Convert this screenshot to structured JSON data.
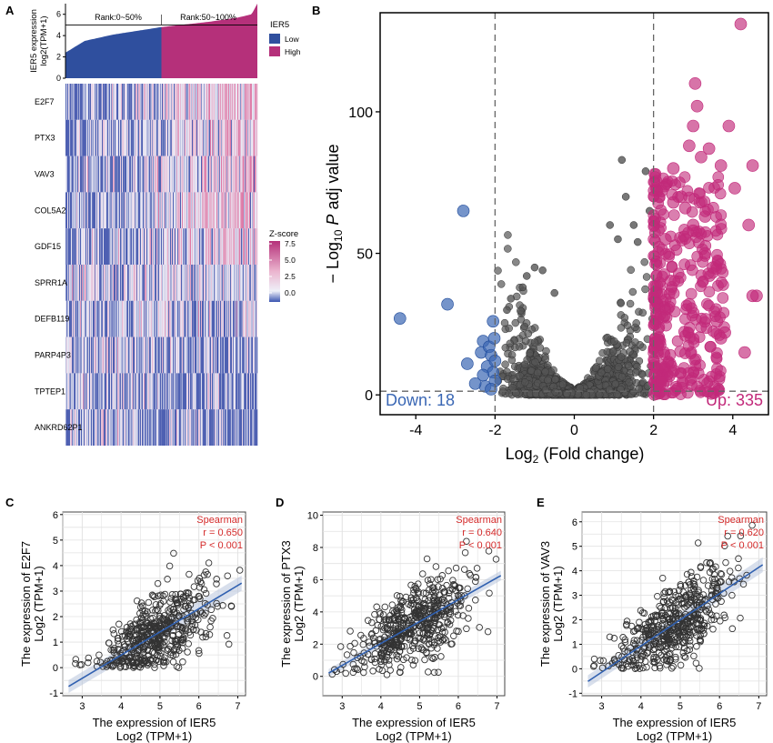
{
  "panel_letters": {
    "a": "A",
    "b": "B",
    "c": "C",
    "d": "D",
    "e": "E"
  },
  "colors": {
    "low": "#2f4f9e",
    "high": "#b5307a",
    "gray": "#555555",
    "down": "#3a67b4",
    "up": "#c2297a",
    "fit": "#3060b0"
  },
  "chart_data": [
    {
      "panel": "A-bar",
      "type": "bar",
      "ylabel": [
        "IER5 expression",
        "log2(TPM+1)"
      ],
      "yticks": [
        0,
        2,
        4,
        6
      ],
      "ylim": [
        0,
        7
      ],
      "hline": 5,
      "rank_labels": [
        "Rank:0~50%",
        "Rank:50~100%"
      ],
      "legend_title": "IER5",
      "legend": [
        "Low",
        "High"
      ],
      "values_quantiles": {
        "p0": 2.4,
        "p10": 3.5,
        "p25": 4.1,
        "p50": 4.8,
        "p75": 5.3,
        "p90": 5.7,
        "p97": 6.0,
        "p100": 7.0
      }
    },
    {
      "panel": "A-heatmap",
      "type": "heatmap",
      "rows": [
        "E2F7",
        "PTX3",
        "VAV3",
        "COL5A2",
        "GDF15",
        "SPRR1A",
        "DEFB119",
        "PARP4P3",
        "TPTEP1",
        "ANKRD62P1"
      ],
      "legend_title": "Z-score",
      "legend_ticks": [
        "7.5",
        "5.0",
        "2.5",
        "0.0"
      ],
      "trend": "first five rows increase with IER5 rank; last five rows roughly flat"
    },
    {
      "panel": "B",
      "type": "scatter",
      "xlabel": "Log2 (Fold change)",
      "ylabel": "− Log10 P adj value",
      "xlim": [
        -4.9,
        4.9
      ],
      "ylim": [
        -7,
        135
      ],
      "xticks": [
        -4,
        -2,
        0,
        2,
        4
      ],
      "yticks": [
        0,
        50,
        100
      ],
      "vlines": [
        -2,
        2
      ],
      "hline": 1.3,
      "down_label": "Down: 18",
      "up_label": "Up: 335",
      "down_points": [
        [
          -4.4,
          27
        ],
        [
          -3.2,
          32
        ],
        [
          -2.8,
          65
        ],
        [
          -2.7,
          11
        ],
        [
          -2.35,
          15
        ],
        [
          -2.3,
          19
        ],
        [
          -2.25,
          3
        ],
        [
          -2.2,
          10
        ],
        [
          -2.15,
          17
        ],
        [
          -2.1,
          14
        ],
        [
          -2.05,
          26
        ],
        [
          -2.05,
          8
        ],
        [
          -2.02,
          20
        ],
        [
          -2.0,
          5
        ],
        [
          -2.0,
          12
        ],
        [
          -2.1,
          2
        ],
        [
          -2.3,
          7
        ],
        [
          -2.5,
          4
        ]
      ],
      "up_highlight": [
        [
          4.2,
          131
        ],
        [
          3.05,
          110
        ],
        [
          3.1,
          102
        ],
        [
          3.9,
          95
        ],
        [
          3.0,
          95
        ],
        [
          4.5,
          81
        ],
        [
          3.7,
          81
        ],
        [
          4.05,
          73
        ],
        [
          4.4,
          60
        ],
        [
          3.3,
          63
        ],
        [
          3.0,
          58
        ],
        [
          4.5,
          35
        ],
        [
          4.6,
          35
        ],
        [
          2.5,
          80
        ],
        [
          2.9,
          88
        ],
        [
          3.4,
          87
        ],
        [
          3.2,
          84
        ],
        [
          2.7,
          70
        ],
        [
          2.2,
          72
        ],
        [
          2.5,
          68
        ],
        [
          2.8,
          66
        ],
        [
          3.0,
          60
        ],
        [
          3.5,
          45
        ],
        [
          3.3,
          50
        ],
        [
          2.3,
          55
        ],
        [
          3.8,
          22
        ],
        [
          4.3,
          15
        ],
        [
          3.6,
          26
        ],
        [
          3.7,
          20
        ],
        [
          2.9,
          32
        ]
      ],
      "up_cloud": {
        "x_range": [
          2.0,
          3.8
        ],
        "y_range": [
          0,
          79
        ],
        "count": 335
      }
    },
    {
      "panel": "C",
      "type": "scatter",
      "xlabel": [
        "The expression of IER5",
        "Log2 (TPM+1)"
      ],
      "ylabel": [
        "The expression of E2F7",
        "Log2 (TPM+1)"
      ],
      "xlim": [
        2.5,
        7.2
      ],
      "ylim": [
        -1.1,
        6.1
      ],
      "xticks": [
        3,
        4,
        5,
        6,
        7
      ],
      "yticks": [
        -1,
        0,
        1,
        2,
        3,
        4,
        5,
        6
      ],
      "spearman": [
        "Spearman",
        "r = 0.650",
        "P < 0.001"
      ],
      "fit": {
        "intercept": -3.15,
        "slope": 0.91
      }
    },
    {
      "panel": "D",
      "type": "scatter",
      "xlabel": [
        "The expression of IER5",
        "Log2 (TPM+1)"
      ],
      "ylabel": [
        "The expression of PTX3",
        "Log2 (TPM+1)"
      ],
      "xlim": [
        2.5,
        7.2
      ],
      "ylim": [
        -1.2,
        10.2
      ],
      "xticks": [
        3,
        4,
        5,
        6,
        7
      ],
      "yticks": [
        0,
        2,
        4,
        6,
        8,
        10
      ],
      "spearman": [
        "Spearman",
        "r = 0.640",
        "P < 0.001"
      ],
      "fit": {
        "intercept": -3.4,
        "slope": 1.36
      }
    },
    {
      "panel": "E",
      "type": "scatter",
      "xlabel": [
        "The expression of IER5",
        "Log2 (TPM+1)"
      ],
      "ylabel": [
        "The expression of VAV3",
        "Log2 (TPM+1)"
      ],
      "xlim": [
        2.5,
        7.2
      ],
      "ylim": [
        -1.1,
        6.4
      ],
      "xticks": [
        3,
        4,
        5,
        6,
        7
      ],
      "yticks": [
        -1,
        0,
        1,
        2,
        3,
        4,
        5,
        6
      ],
      "spearman": [
        "Spearman",
        "r = 0.620",
        "P < 0.001"
      ],
      "fit": {
        "intercept": -3.35,
        "slope": 1.07
      }
    }
  ]
}
